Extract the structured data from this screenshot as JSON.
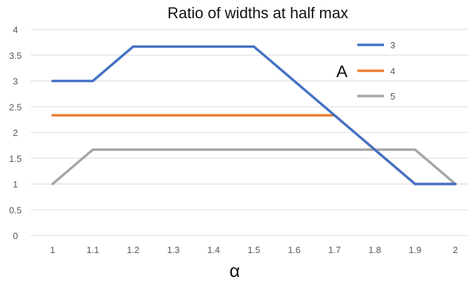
{
  "chart_data": {
    "type": "line",
    "title": "Ratio of widths at half max",
    "xlabel": "α",
    "ylabel": "",
    "x": [
      1,
      1.1,
      1.2,
      1.3,
      1.4,
      1.5,
      1.6,
      1.7,
      1.8,
      1.9,
      2
    ],
    "x_tick_labels": [
      "1",
      "1.1",
      "1.2",
      "1.3",
      "1.4",
      "1.5",
      "1.6",
      "1.7",
      "1.8",
      "1.9",
      "2"
    ],
    "y_ticks": [
      0,
      0.5,
      1,
      1.5,
      2,
      2.5,
      3,
      3.5,
      4
    ],
    "y_tick_labels": [
      "0",
      "0.5",
      "1",
      "1.5",
      "2",
      "2.5",
      "3",
      "3.5",
      "4"
    ],
    "ylim": [
      0,
      4
    ],
    "grid": "horizontal",
    "legend_title": "A",
    "legend_position": "right",
    "series": [
      {
        "name": "3",
        "color": "#4472c4",
        "values": [
          3,
          3,
          3.667,
          3.667,
          3.667,
          3.667,
          3,
          2.333,
          1.667,
          1,
          1
        ]
      },
      {
        "name": "4",
        "color": "#ed7d31",
        "values": [
          2.333,
          2.333,
          2.333,
          2.333,
          2.333,
          2.333,
          2.333,
          2.333,
          1.667,
          1,
          1
        ]
      },
      {
        "name": "5",
        "color": "#a5a5a5",
        "values": [
          1,
          1.667,
          1.667,
          1.667,
          1.667,
          1.667,
          1.667,
          1.667,
          1.667,
          1.667,
          1
        ]
      }
    ]
  },
  "colors": {
    "grid": "#d9d9d9",
    "background": "#ffffff"
  }
}
